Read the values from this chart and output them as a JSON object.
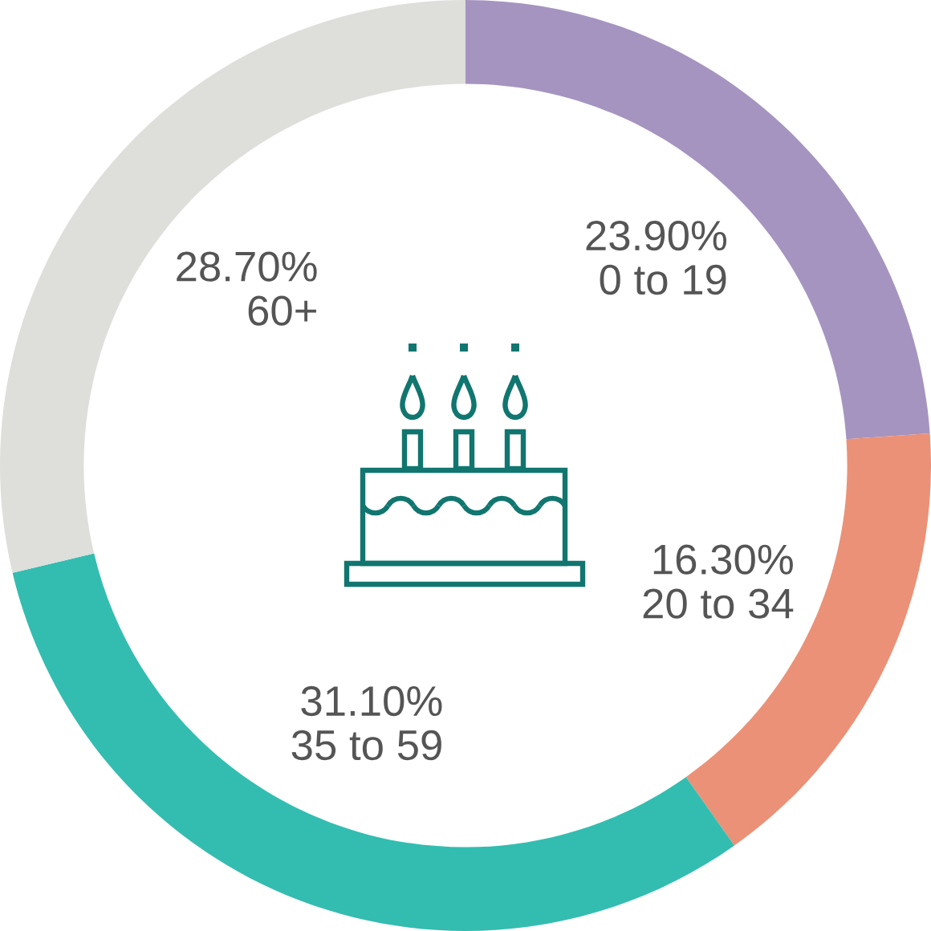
{
  "chart_data": {
    "type": "donut",
    "categories": [
      "0 to 19",
      "20 to 34",
      "35 to 59",
      "60+"
    ],
    "values": [
      23.9,
      16.3,
      31.1,
      28.7
    ],
    "value_labels": [
      "23.90%",
      "16.30%",
      "31.10%",
      "28.70%"
    ],
    "colors": [
      "#a594c0",
      "#eb9177",
      "#33bdb0",
      "#dededb"
    ]
  }
}
